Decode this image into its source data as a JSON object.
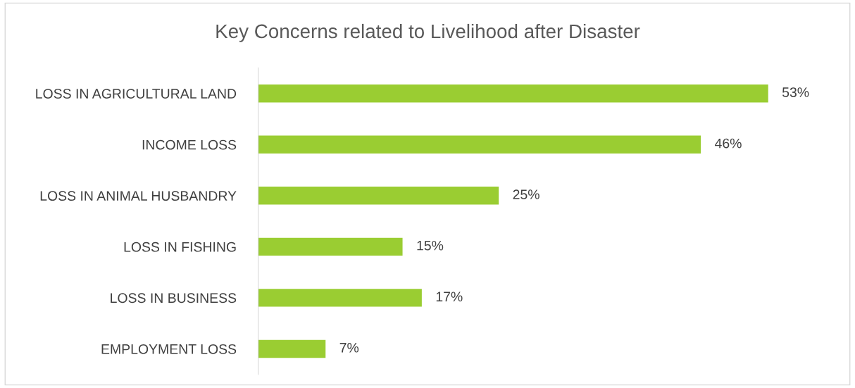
{
  "chart_data": {
    "type": "bar",
    "orientation": "horizontal",
    "title": "Key Concerns related to Livelihood after Disaster",
    "categories": [
      "LOSS IN AGRICULTURAL LAND",
      "INCOME LOSS",
      "LOSS IN ANIMAL HUSBANDRY",
      "LOSS IN FISHING",
      "LOSS IN BUSINESS",
      "EMPLOYMENT LOSS"
    ],
    "values": [
      53,
      46,
      25,
      15,
      17,
      7
    ],
    "value_labels": [
      "53%",
      "46%",
      "25%",
      "15%",
      "17%",
      "7%"
    ],
    "color": "#9acd32",
    "tick_labels": "y",
    "grid": false,
    "legend": false
  }
}
